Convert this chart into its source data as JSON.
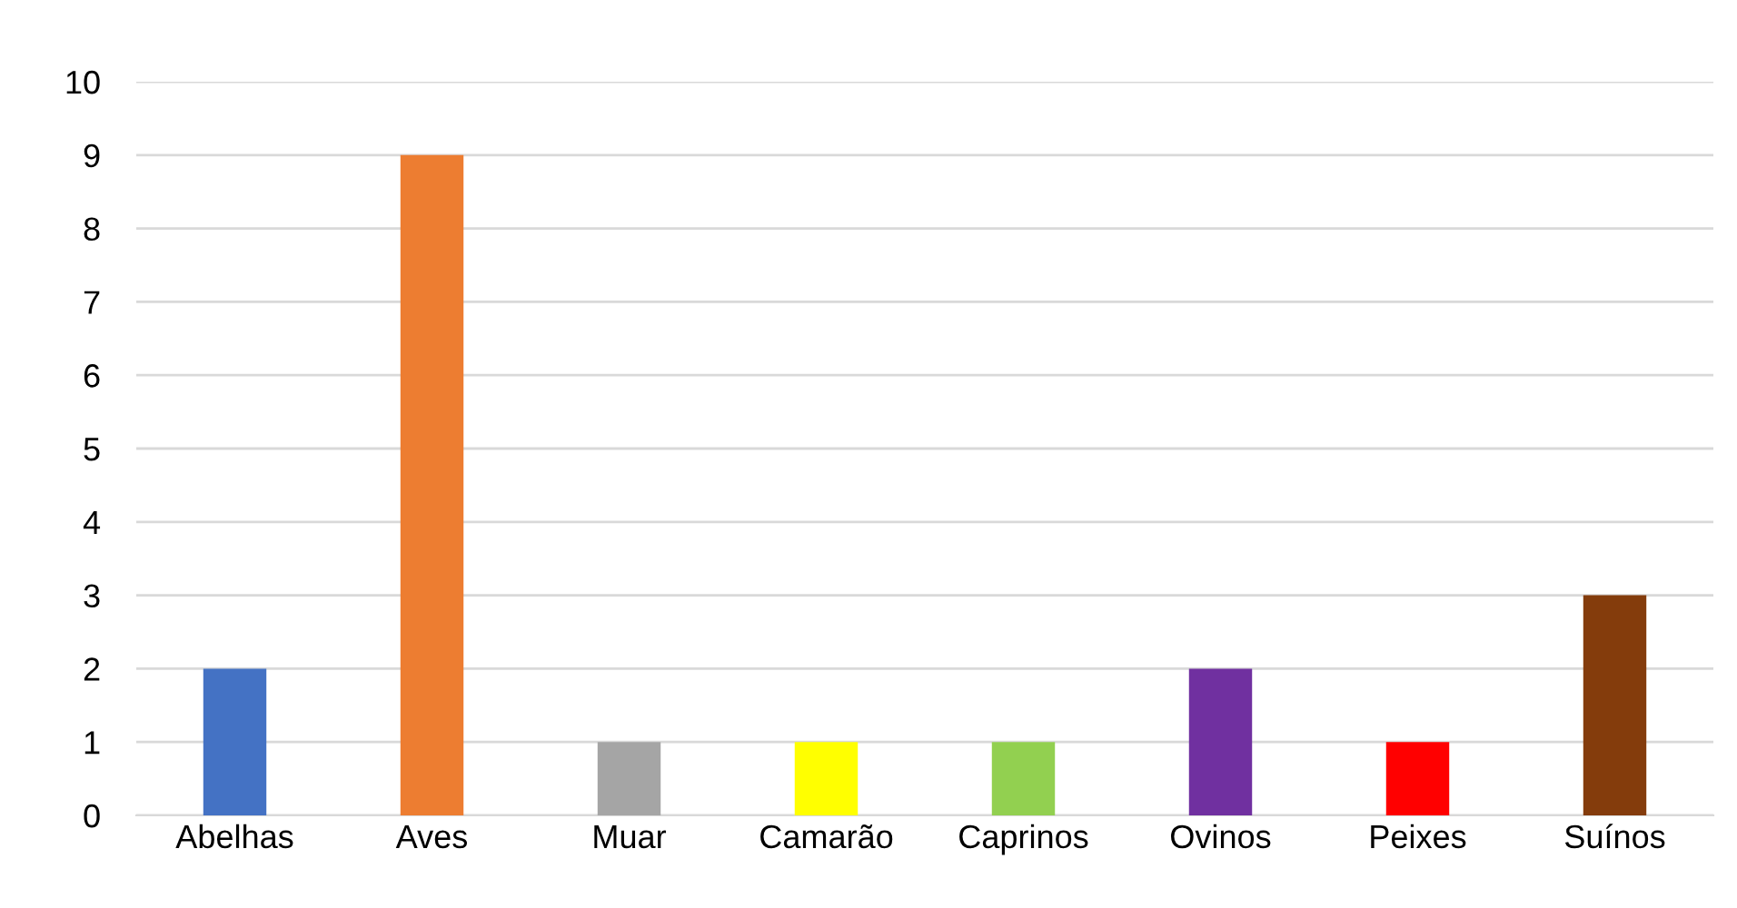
{
  "chart_data": {
    "type": "bar",
    "categories": [
      "Abelhas",
      "Aves",
      "Muar",
      "Camarão",
      "Caprinos",
      "Ovinos",
      "Peixes",
      "Suínos"
    ],
    "values": [
      2,
      9,
      1,
      1,
      1,
      2,
      1,
      3
    ],
    "colors": [
      "#4472c4",
      "#ed7d31",
      "#a5a5a5",
      "#ffff00",
      "#92d050",
      "#7030a0",
      "#ff0000",
      "#843c0c"
    ],
    "ylim": [
      0,
      10
    ],
    "yticks": [
      0,
      1,
      2,
      3,
      4,
      5,
      6,
      7,
      8,
      9,
      10
    ],
    "grid": "y"
  }
}
